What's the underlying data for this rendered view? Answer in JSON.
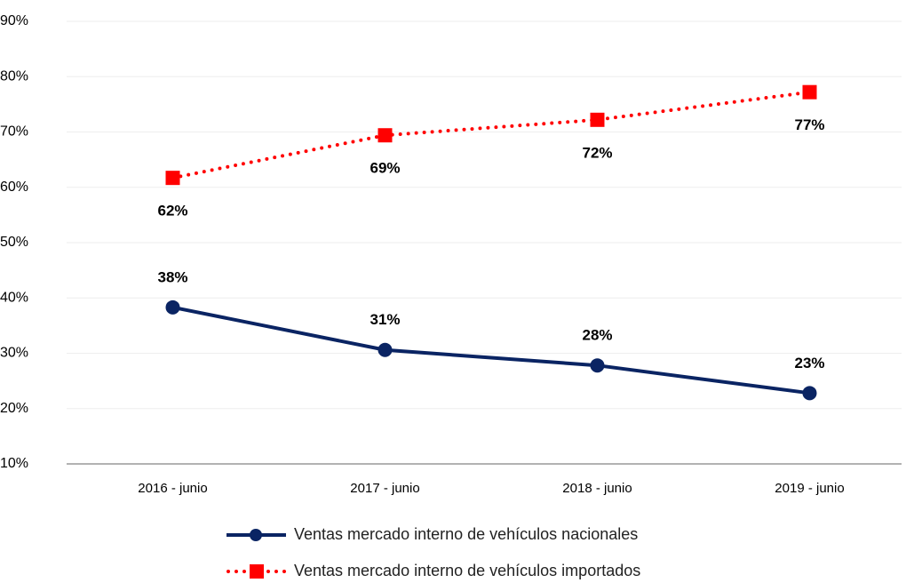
{
  "chart_data": {
    "type": "line",
    "categories": [
      "2016 - junio",
      "2017 - junio",
      "2018 - junio",
      "2019 - junio"
    ],
    "series": [
      {
        "name": "Ventas mercado interno de vehículos nacionales",
        "color": "#0a2463",
        "values": [
          38.3,
          30.6,
          27.8,
          22.8
        ],
        "value_labels": [
          "38%",
          "31%",
          "28%",
          "23%"
        ]
      },
      {
        "name": "Ventas mercado interno de vehículos importados",
        "color": "#ff0000",
        "values": [
          61.7,
          69.4,
          72.2,
          77.2
        ],
        "value_labels": [
          "62%",
          "69%",
          "72%",
          "77%"
        ]
      }
    ],
    "ylim": [
      10,
      90
    ],
    "yticks": [
      {
        "value": 10,
        "label": "10%"
      },
      {
        "value": 20,
        "label": "20%"
      },
      {
        "value": 30,
        "label": "30%"
      },
      {
        "value": 40,
        "label": "40%"
      },
      {
        "value": 50,
        "label": "50%"
      },
      {
        "value": 60,
        "label": "60%"
      },
      {
        "value": 70,
        "label": "70%"
      },
      {
        "value": 80,
        "label": "80%"
      },
      {
        "value": 90,
        "label": "90%"
      }
    ],
    "grid": true
  }
}
